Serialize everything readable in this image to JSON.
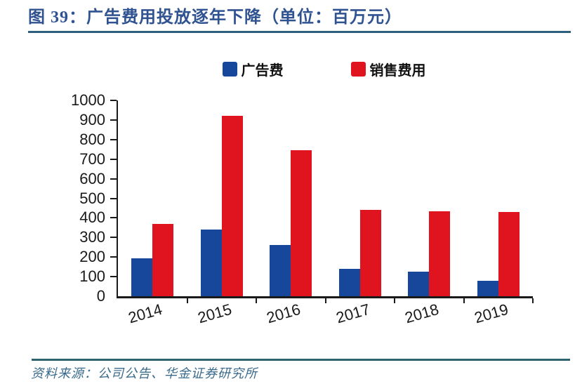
{
  "header": {
    "title": "图 39：广告费用投放逐年下降（单位：百万元）"
  },
  "chart_data": {
    "type": "bar",
    "title": "广告费用投放逐年下降",
    "unit_label": "百万元",
    "categories": [
      "2014",
      "2015",
      "2016",
      "2017",
      "2018",
      "2019"
    ],
    "series": [
      {
        "name": "广告费",
        "color": "#17479B",
        "values": [
          195,
          340,
          260,
          140,
          125,
          80
        ]
      },
      {
        "name": "销售费用",
        "color": "#E0141E",
        "values": [
          370,
          920,
          745,
          440,
          435,
          430
        ]
      }
    ],
    "ylim": [
      0,
      1000
    ],
    "ytick_step": 100,
    "xlabel": "",
    "ylabel": "",
    "legend_position": "top",
    "grid": false
  },
  "footer": {
    "source": "资料来源：公司公告、华金证券研究所"
  },
  "colors": {
    "title_text": "#2F5291",
    "top_rule": "#2E5F7E",
    "bottom_rule": "#2D6470",
    "source_text": "#3A6B8C",
    "axis": "#1A1A1A",
    "ad_series": "#17479B",
    "selling_series": "#E0141E"
  }
}
